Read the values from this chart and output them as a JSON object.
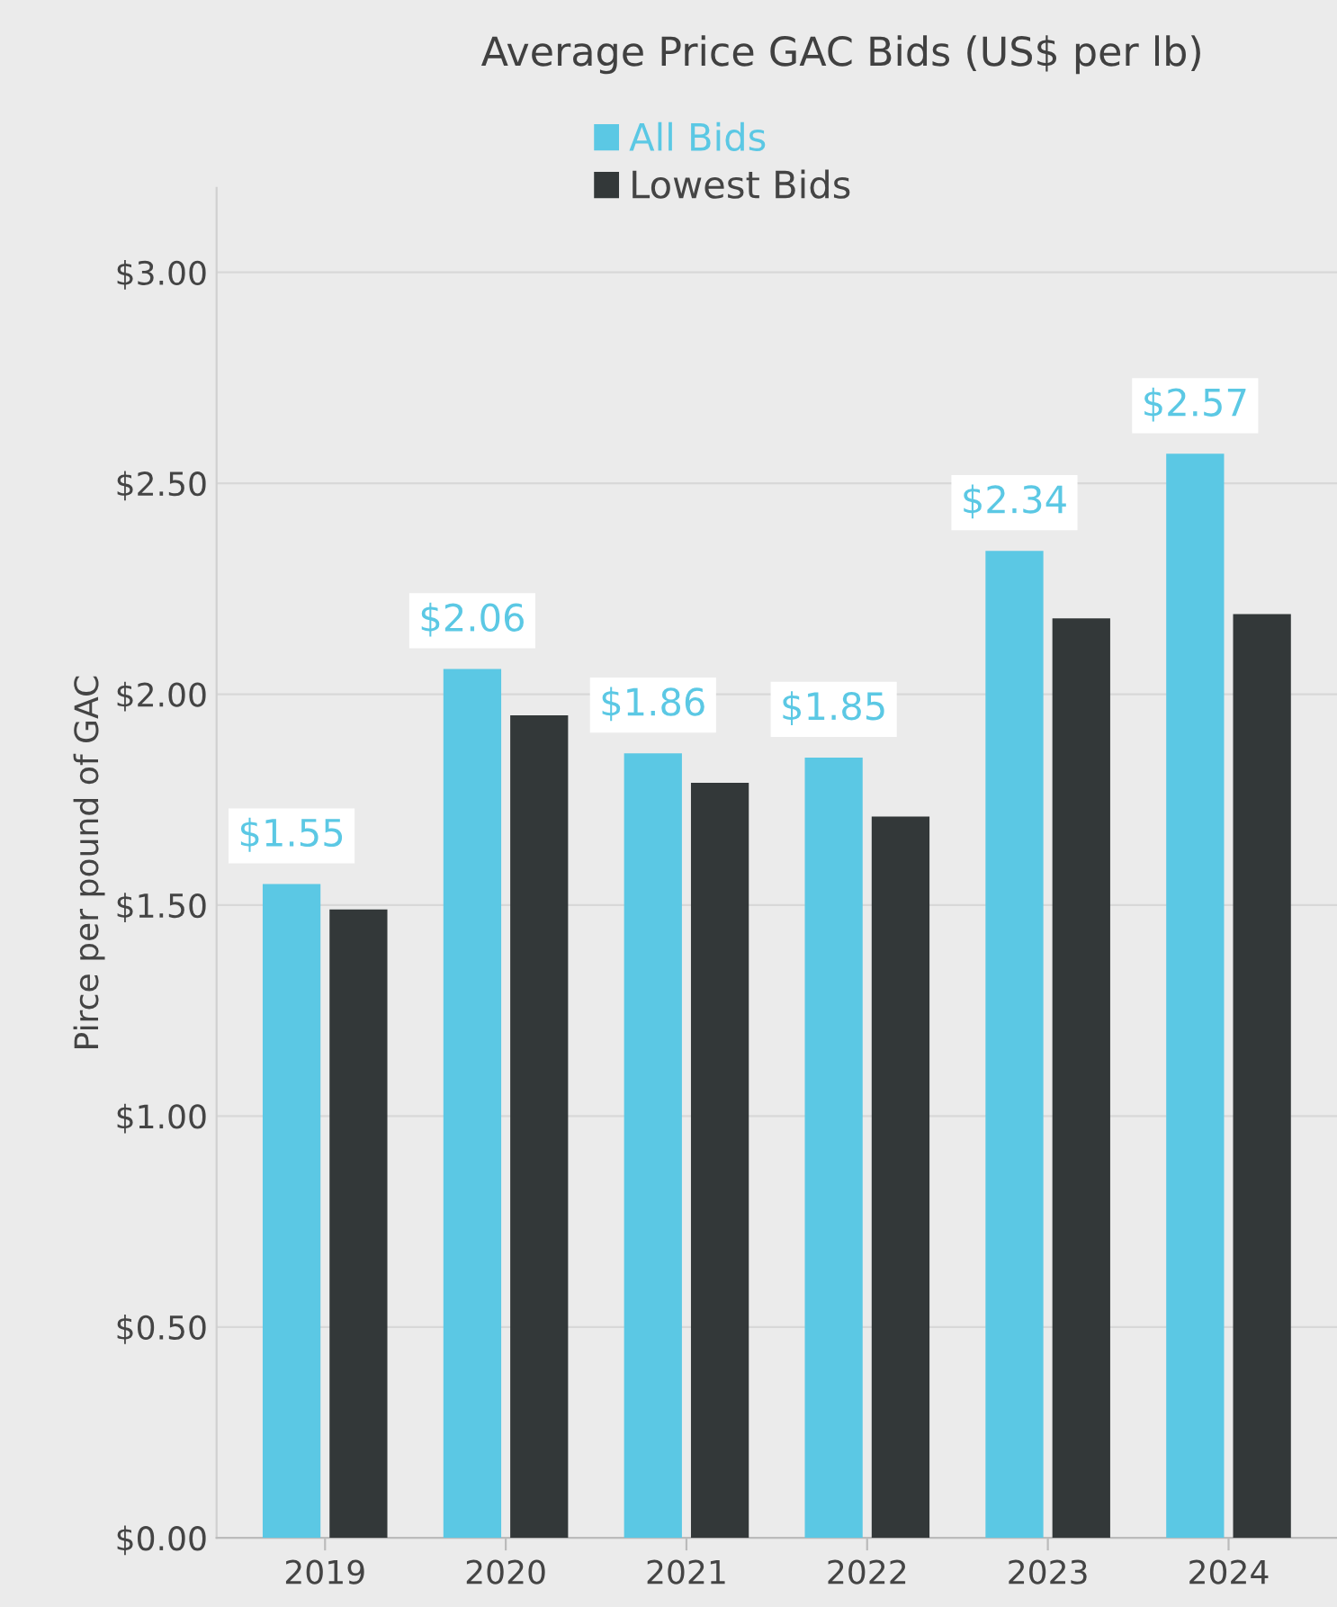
{
  "chart_data": {
    "type": "bar",
    "title": "Average Price GAC Bids (US$ per lb)",
    "ylabel": "Pirce per pound of GAC",
    "categories": [
      "2019",
      "2020",
      "2021",
      "2022",
      "2023",
      "2024"
    ],
    "series": [
      {
        "name": "All Bids",
        "color": "#5bc8e4",
        "values": [
          1.55,
          2.06,
          1.86,
          1.85,
          2.34,
          2.57
        ],
        "value_labels": [
          "$1.55",
          "$2.06",
          "$1.86",
          "$1.85",
          "$2.34",
          "$2.57"
        ]
      },
      {
        "name": "Lowest Bids",
        "color": "#333839",
        "values": [
          1.49,
          1.95,
          1.79,
          1.71,
          2.18,
          2.19
        ]
      }
    ],
    "ylim": [
      0,
      3.2
    ],
    "yticks": [
      {
        "value": 0,
        "label": "$0.00"
      },
      {
        "value": 0.5,
        "label": "$0.50"
      },
      {
        "value": 1,
        "label": "$1.00"
      },
      {
        "value": 1.5,
        "label": "$1.50"
      },
      {
        "value": 2,
        "label": "$2.00"
      },
      {
        "value": 2.5,
        "label": "$2.50"
      },
      {
        "value": 3,
        "label": "$3.00"
      }
    ],
    "grid": "y",
    "legend": "top"
  }
}
